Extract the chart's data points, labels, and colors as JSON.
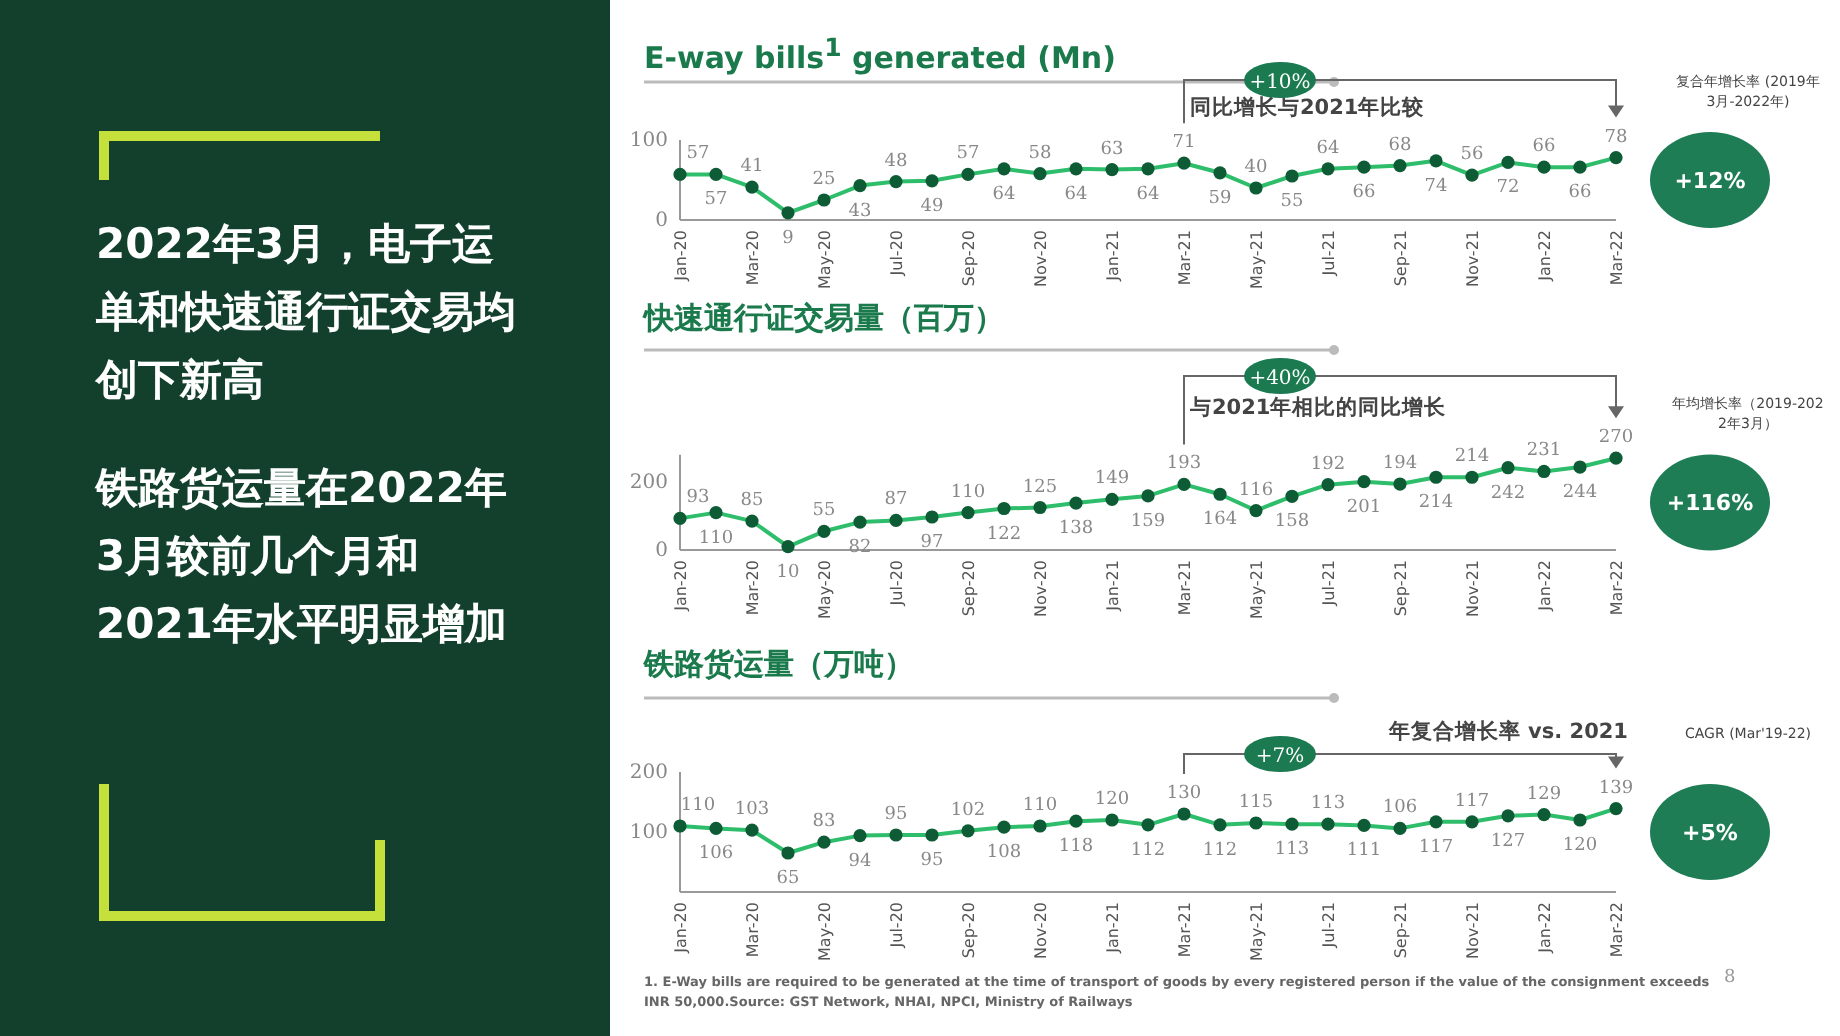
{
  "chart_data": [
    {
      "type": "other",
      "annotations": [
        "2022年3月，电子运单和快速通行证交易均创下新高",
        "铁路货运量在2022年3月较前几个月和2021年水平明显增加",
        "1. E-Way bills are required to be generated at the time of transport of goods by every registered person if the value of the consignment exceeds INR 50,000.Source: GST Network, NHAI, NPCI, Ministry of Railways",
        "8"
      ]
    },
    {
      "type": "line",
      "title": "E-way bills$^{1}$ generated (Mn)",
      "categories": [
        "Jan-20",
        null,
        "Mar-20",
        null,
        "May-20",
        null,
        "Jul-20",
        null,
        "Sep-20",
        null,
        "Nov-20",
        null,
        "Jan-21",
        null,
        "Mar-21",
        null,
        "May-21",
        null,
        "Jul-21",
        null,
        "Sep-21",
        null,
        "Nov-21",
        null,
        "Jan-22",
        null,
        "Mar-22"
      ],
      "series": [
        {
          "color": "#2ebd6b",
          "values": [
            57,
            57,
            41,
            9,
            25,
            43,
            48,
            49,
            57,
            64,
            58,
            64,
            63,
            64,
            71,
            59,
            40,
            55,
            64,
            66,
            68,
            74,
            56,
            72,
            66,
            66,
            78
          ]
        }
      ],
      "ylim": [
        0,
        100
      ],
      "yticks": [
        0,
        100
      ],
      "data_labels": true,
      "marker": "circle",
      "annotations": [
        "+10%",
        "同比增长与2021年比较",
        "+12%",
        "复合年增长率 (2019年3月-2022年)"
      ]
    },
    {
      "type": "line",
      "title": "快速通行证交易量（百万）",
      "categories": [
        "Jan-20",
        null,
        "Mar-20",
        null,
        "May-20",
        null,
        "Jul-20",
        null,
        "Sep-20",
        null,
        "Nov-20",
        null,
        "Jan-21",
        null,
        "Mar-21",
        null,
        "May-21",
        null,
        "Jul-21",
        null,
        "Sep-21",
        null,
        "Nov-21",
        null,
        "Jan-22",
        null,
        "Mar-22"
      ],
      "series": [
        {
          "color": "#2ebd6b",
          "values": [
            93,
            110,
            85,
            10,
            55,
            82,
            87,
            97,
            110,
            122,
            125,
            138,
            149,
            159,
            193,
            164,
            116,
            158,
            192,
            201,
            194,
            214,
            214,
            242,
            231,
            244,
            270
          ]
        }
      ],
      "ylim": [
        0,
        280
      ],
      "yticks": [
        0,
        200
      ],
      "data_labels": true,
      "marker": "circle",
      "annotations": [
        "+40%",
        "与2021年相比的同比增长",
        "+116%",
        "年均增长率（2019-2022年3月）"
      ]
    },
    {
      "type": "line",
      "title": "铁路货运量（万吨）",
      "categories": [
        "Jan-20",
        null,
        "Mar-20",
        null,
        "May-20",
        null,
        "Jul-20",
        null,
        "Sep-20",
        null,
        "Nov-20",
        null,
        "Jan-21",
        null,
        "Mar-21",
        null,
        "May-21",
        null,
        "Jul-21",
        null,
        "Sep-21",
        null,
        "Nov-21",
        null,
        "Jan-22",
        null,
        "Mar-22"
      ],
      "series": [
        {
          "color": "#2ebd6b",
          "values": [
            110,
            106,
            103,
            65,
            83,
            94,
            95,
            95,
            102,
            108,
            110,
            118,
            120,
            112,
            130,
            112,
            115,
            113,
            113,
            111,
            106,
            117,
            117,
            127,
            129,
            120,
            139
          ]
        }
      ],
      "ylim": [
        0,
        200
      ],
      "yticks": [
        100,
        200
      ],
      "data_labels": true,
      "marker": "circle",
      "annotations": [
        "+7%",
        "年复合增长率 vs. 2021",
        "+5%",
        "CAGR (Mar'19-22)"
      ]
    }
  ]
}
